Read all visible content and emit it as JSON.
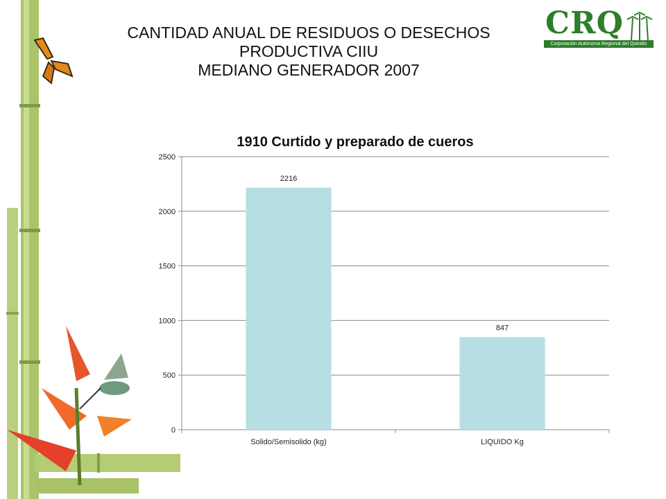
{
  "slide": {
    "title_lines": [
      "CANTIDAD ANUAL DE RESIDUOS O DESECHOS",
      "PRODUCTIVA CIIU",
      "MEDIANO GENERADOR 2007"
    ]
  },
  "logo": {
    "text": "CRQ",
    "subtitle": "Corporación Autónoma Regional del Quindío"
  },
  "colors": {
    "bar": "#b7dfe3",
    "grid": "#8a8a8a",
    "logo_green": "#2e7d2a"
  },
  "chart_data": {
    "type": "bar",
    "title": "1910  Curtido y preparado de cueros",
    "categories": [
      "Solido/Semisolido (kg)",
      "LIQUIDO Kg"
    ],
    "values": [
      2216,
      847
    ],
    "data_labels": [
      "2216",
      "847"
    ],
    "yticks": [
      0,
      500,
      1000,
      1500,
      2000,
      2500
    ],
    "ylim": [
      0,
      2500
    ],
    "xlabel": "",
    "ylabel": "",
    "grid": true,
    "legend": "none"
  }
}
